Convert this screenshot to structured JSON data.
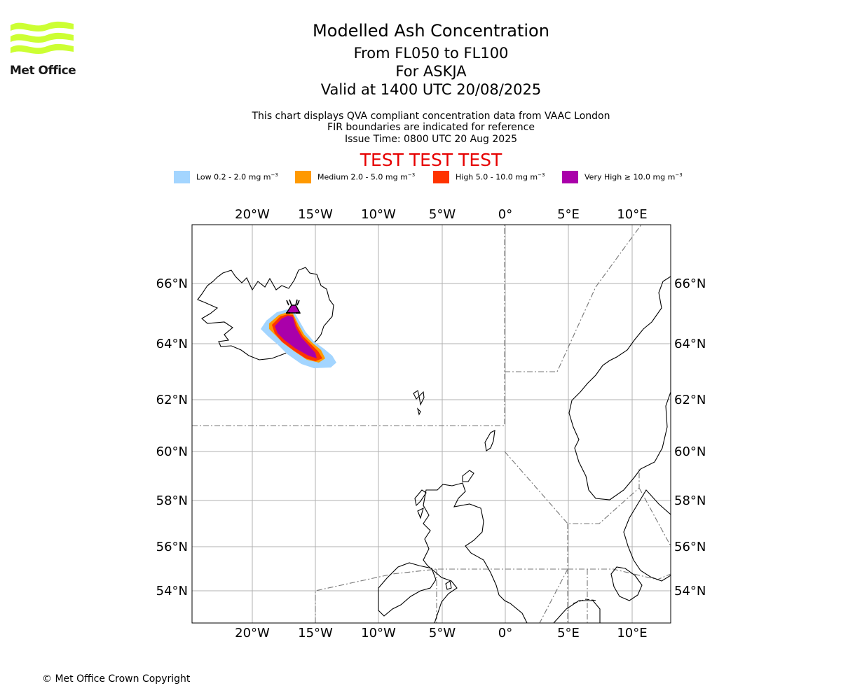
{
  "logo": {
    "text": "Met Office",
    "color": "#ccff33"
  },
  "header": {
    "title": "Modelled Ash Concentration",
    "levels": "From FL050 to FL100",
    "volcano": "For ASKJA",
    "valid": "Valid at 1400 UTC 20/08/2025",
    "info_1": "This chart displays QVA compliant concentration data from VAAC London",
    "info_2": "FIR boundaries are indicated for reference",
    "info_3": "Issue Time: 0800 UTC 20 Aug 2025",
    "test_banner": "TEST TEST TEST"
  },
  "legend": [
    {
      "label": "Low 0.2 - 2.0 mg m",
      "exp": "−3",
      "color": "#a3d5ff"
    },
    {
      "label": "Medium 2.0 - 5.0 mg m",
      "exp": "−3",
      "color": "#ff9900"
    },
    {
      "label": "High 5.0 - 10.0 mg m",
      "exp": "−3",
      "color": "#ff3300"
    },
    {
      "label": "Very High  ≥  10.0 mg m",
      "exp": "−3",
      "color": "#aa00aa"
    }
  ],
  "map": {
    "lon_ticks": [
      "20°W",
      "15°W",
      "10°W",
      "5°W",
      "0°",
      "5°E",
      "10°E"
    ],
    "lat_ticks": [
      "66°N",
      "64°N",
      "62°N",
      "60°N",
      "58°N",
      "56°N",
      "54°N"
    ],
    "volcano_marker": "volcano-icon"
  },
  "footer": {
    "copyright": "© Met Office Crown Copyright"
  }
}
